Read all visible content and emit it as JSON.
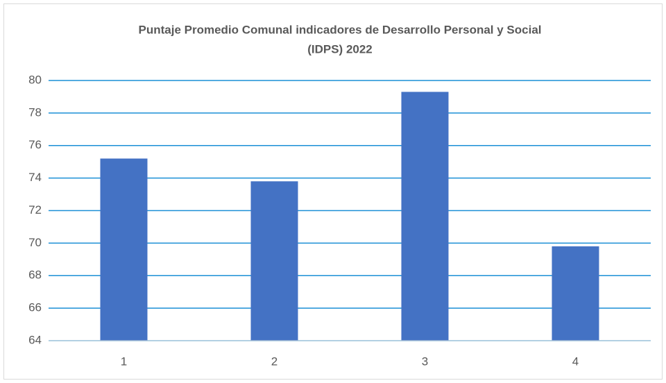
{
  "chart_data": {
    "type": "bar",
    "title": [
      "Puntaje Promedio Comunal indicadores de Desarrollo Personal y Social",
      "(IDPS) 2022"
    ],
    "categories": [
      "1",
      "2",
      "3",
      "4"
    ],
    "values": [
      75.2,
      73.8,
      79.3,
      69.8
    ],
    "color": "#4472c4",
    "ylim": [
      64,
      80
    ],
    "yticks": [
      64,
      66,
      68,
      70,
      72,
      74,
      76,
      78,
      80
    ],
    "grid": true,
    "grid_color": "#1a8fd6"
  }
}
